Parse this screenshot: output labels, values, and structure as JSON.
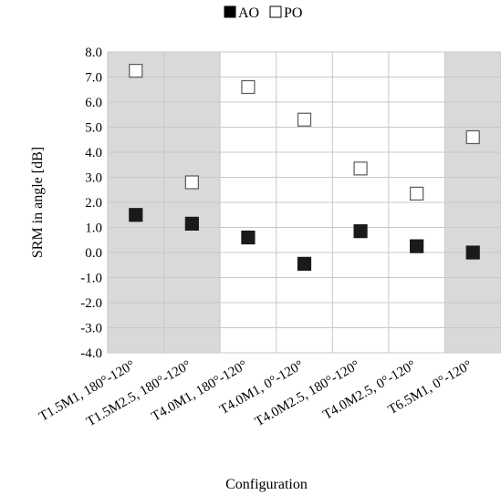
{
  "chart_data": {
    "type": "scatter",
    "title": "",
    "xlabel": "Configuration",
    "ylabel": "SRM in angle [dB]",
    "ylim": [
      -4.0,
      8.0
    ],
    "ytick_step": 1.0,
    "grid": true,
    "legend_position": "top-center",
    "categories": [
      "T1.5M1, 180°-120°",
      "T1.5M2.5, 180°-120°",
      "T4.0M1, 180°-120°",
      "T4.0M1, 0°-120°",
      "T4.0M2.5, 180°-120°",
      "T4.0M2.5, 0°-120°",
      "T6.5M1, 0°-120°"
    ],
    "shaded_categories": [
      0,
      1,
      6
    ],
    "shade_color": "#d9d9d9",
    "series": [
      {
        "name": "AO",
        "marker": "filled-square",
        "color": "#1a1a1a",
        "values": [
          1.5,
          1.15,
          0.6,
          -0.45,
          0.85,
          0.25,
          0.0
        ]
      },
      {
        "name": "PO",
        "marker": "open-square",
        "color": "#595959",
        "values": [
          7.25,
          2.8,
          6.6,
          5.3,
          3.35,
          2.35,
          4.6
        ]
      }
    ]
  }
}
